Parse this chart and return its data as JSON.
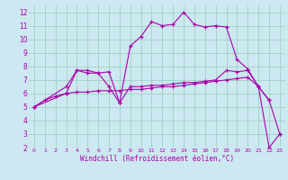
{
  "xlabel": "Windchill (Refroidissement éolien,°C)",
  "background_color": "#cce8f0",
  "grid_color": "#99ccbb",
  "line_color": "#aa00aa",
  "xlim": [
    -0.5,
    23.5
  ],
  "ylim": [
    2,
    12.5
  ],
  "xtick_labels": [
    "0",
    "1",
    "2",
    "3",
    "4",
    "5",
    "6",
    "7",
    "8",
    "9",
    "10",
    "11",
    "12",
    "13",
    "14",
    "15",
    "16",
    "17",
    "18",
    "19",
    "20",
    "21",
    "22",
    "23"
  ],
  "xtick_pos": [
    0,
    1,
    2,
    3,
    4,
    5,
    6,
    7,
    8,
    9,
    10,
    11,
    12,
    13,
    14,
    15,
    16,
    17,
    18,
    19,
    20,
    21,
    22,
    23
  ],
  "ytick_pos": [
    2,
    3,
    4,
    5,
    6,
    7,
    8,
    9,
    10,
    11,
    12
  ],
  "series": [
    {
      "x": [
        0,
        1,
        2,
        3,
        4,
        5,
        6,
        7,
        8,
        9,
        10,
        11,
        12,
        13,
        14,
        15,
        16,
        17,
        18,
        19,
        20,
        21,
        22,
        23
      ],
      "y": [
        5.0,
        5.5,
        5.8,
        6.0,
        6.1,
        6.1,
        6.2,
        6.2,
        6.2,
        6.3,
        6.3,
        6.4,
        6.5,
        6.5,
        6.6,
        6.7,
        6.8,
        6.9,
        7.0,
        7.1,
        7.2,
        6.5,
        5.5,
        3.0
      ]
    },
    {
      "x": [
        0,
        3,
        4,
        5,
        6,
        7,
        8,
        9,
        10,
        11,
        12,
        13,
        14,
        15,
        16,
        17,
        18,
        19,
        20,
        21,
        22
      ],
      "y": [
        5.0,
        6.5,
        7.7,
        7.7,
        7.5,
        6.5,
        5.3,
        9.5,
        10.2,
        11.3,
        11.0,
        11.1,
        12.0,
        11.1,
        10.9,
        11.0,
        10.9,
        8.5,
        7.8,
        6.5,
        5.5
      ]
    },
    {
      "x": [
        0,
        3,
        4,
        5,
        6,
        7,
        8,
        9,
        10,
        11,
        12,
        13,
        14,
        15,
        16,
        17,
        18,
        19,
        20,
        21,
        22,
        23
      ],
      "y": [
        5.0,
        6.0,
        7.7,
        7.5,
        7.5,
        7.6,
        5.3,
        6.5,
        6.5,
        6.6,
        6.6,
        6.7,
        6.8,
        6.8,
        6.9,
        7.0,
        7.7,
        7.6,
        7.7,
        6.5,
        2.0,
        3.0
      ]
    }
  ]
}
